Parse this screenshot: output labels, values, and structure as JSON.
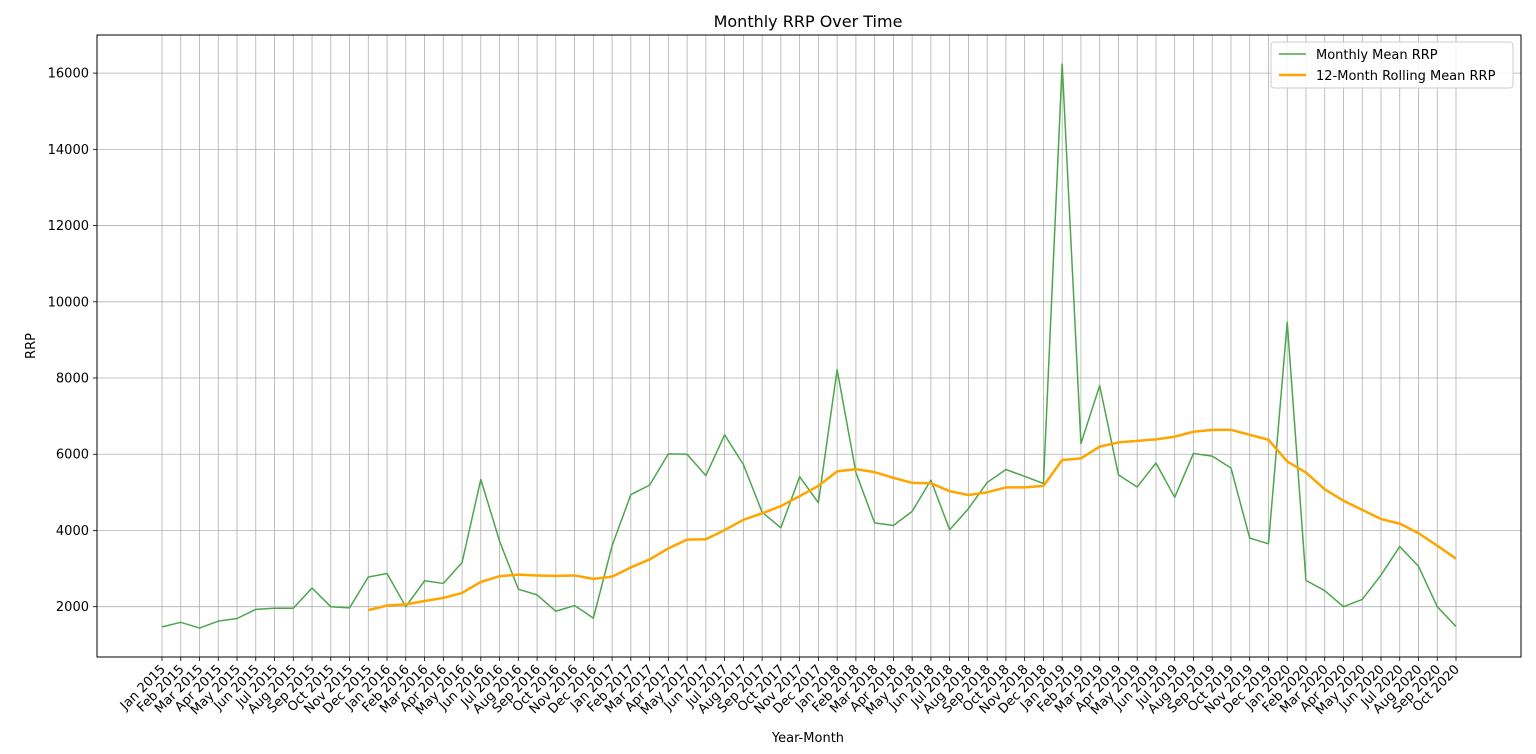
{
  "chart_data": {
    "type": "line",
    "title": "Monthly RRP Over Time",
    "xlabel": "Year-Month",
    "ylabel": "RRP",
    "ylim": [
      680,
      17000
    ],
    "yticks": [
      2000,
      4000,
      6000,
      8000,
      10000,
      12000,
      14000,
      16000
    ],
    "grid": true,
    "legend_position": "top-right",
    "categories": [
      "Jan 2015",
      "Feb 2015",
      "Mar 2015",
      "Apr 2015",
      "May 2015",
      "Jun 2015",
      "Jul 2015",
      "Aug 2015",
      "Sep 2015",
      "Oct 2015",
      "Nov 2015",
      "Dec 2015",
      "Jan 2016",
      "Feb 2016",
      "Mar 2016",
      "Apr 2016",
      "May 2016",
      "Jun 2016",
      "Jul 2016",
      "Aug 2016",
      "Sep 2016",
      "Oct 2016",
      "Nov 2016",
      "Dec 2016",
      "Jan 2017",
      "Feb 2017",
      "Mar 2017",
      "Apr 2017",
      "May 2017",
      "Jun 2017",
      "Jul 2017",
      "Aug 2017",
      "Sep 2017",
      "Oct 2017",
      "Nov 2017",
      "Dec 2017",
      "Jan 2018",
      "Feb 2018",
      "Mar 2018",
      "Apr 2018",
      "May 2018",
      "Jun 2018",
      "Jul 2018",
      "Aug 2018",
      "Sep 2018",
      "Oct 2018",
      "Nov 2018",
      "Dec 2018",
      "Jan 2019",
      "Feb 2019",
      "Mar 2019",
      "Apr 2019",
      "May 2019",
      "Jun 2019",
      "Jul 2019",
      "Aug 2019",
      "Sep 2019",
      "Oct 2019",
      "Nov 2019",
      "Dec 2019",
      "Jan 2020",
      "Feb 2020",
      "Mar 2020",
      "Apr 2020",
      "May 2020",
      "Jun 2020",
      "Jul 2020",
      "Aug 2020",
      "Sep 2020",
      "Oct 2020"
    ],
    "series": [
      {
        "name": "Monthly Mean RRP",
        "color": "#4ca64c",
        "values": [
          1470,
          1590,
          1440,
          1620,
          1690,
          1930,
          1960,
          1960,
          2490,
          2000,
          1970,
          2780,
          2870,
          2000,
          2680,
          2610,
          3160,
          5340,
          3720,
          2460,
          2310,
          1880,
          2030,
          1700,
          3600,
          4940,
          5190,
          6010,
          6000,
          5440,
          6510,
          5730,
          4480,
          4070,
          5410,
          4730,
          8220,
          5520,
          4200,
          4130,
          4500,
          5320,
          4020,
          4570,
          5260,
          5600,
          5420,
          5230,
          16240,
          6280,
          7800,
          5460,
          5140,
          5770,
          4870,
          6020,
          5950,
          5640,
          3800,
          3650,
          9460,
          2690,
          2420,
          2000,
          2190,
          2830,
          3580,
          3060,
          2000,
          1480
        ]
      },
      {
        "name": "12-Month Rolling Mean RRP",
        "color": "#ffa500",
        "values": [
          null,
          null,
          null,
          null,
          null,
          null,
          null,
          null,
          null,
          null,
          null,
          1910,
          2030,
          2060,
          2150,
          2230,
          2360,
          2650,
          2800,
          2840,
          2820,
          2810,
          2820,
          2730,
          2790,
          3030,
          3240,
          3530,
          3760,
          3770,
          4010,
          4280,
          4450,
          4640,
          4900,
          5170,
          5550,
          5610,
          5530,
          5380,
          5250,
          5240,
          5030,
          4930,
          5000,
          5130,
          5130,
          5170,
          5850,
          5890,
          6200,
          6310,
          6350,
          6390,
          6460,
          6590,
          6640,
          6640,
          6510,
          6380,
          5810,
          5520,
          5080,
          4780,
          4540,
          4300,
          4180,
          3930,
          3600,
          3260
        ]
      }
    ]
  }
}
